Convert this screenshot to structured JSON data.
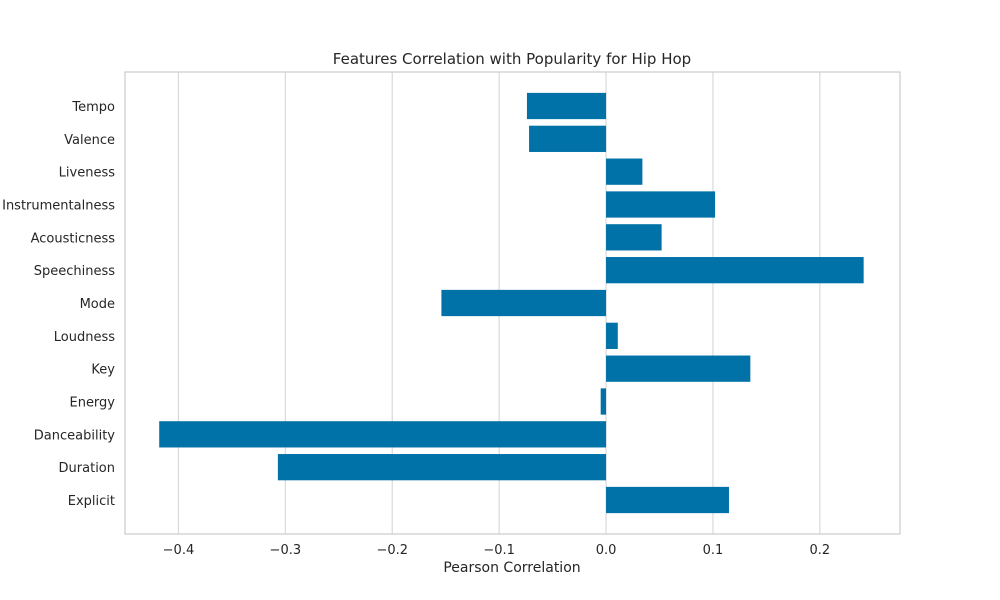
{
  "chart_data": {
    "type": "bar",
    "orientation": "horizontal",
    "title": "Features Correlation with Popularity for Hip Hop",
    "xlabel": "Pearson Correlation",
    "ylabel": "",
    "xlim": [
      -0.45,
      0.275
    ],
    "grid": "vertical",
    "bar_color": "#0072a7",
    "frame_color": "#cccccc",
    "grid_color": "#d9d9d9",
    "categories": [
      "Explicit",
      "Duration",
      "Danceability",
      "Energy",
      "Key",
      "Loudness",
      "Mode",
      "Speechiness",
      "Acousticness",
      "Instrumentalness",
      "Liveness",
      "Valence",
      "Tempo"
    ],
    "values": [
      0.115,
      -0.307,
      -0.418,
      -0.005,
      0.135,
      0.011,
      -0.154,
      0.241,
      0.052,
      0.102,
      0.034,
      -0.072,
      -0.074
    ],
    "x_ticks": [
      -0.4,
      -0.3,
      -0.2,
      -0.1,
      0.0,
      0.1,
      0.2
    ],
    "x_tick_labels": [
      "−0.4",
      "−0.3",
      "−0.2",
      "−0.1",
      "0.0",
      "0.1",
      "0.2"
    ]
  }
}
